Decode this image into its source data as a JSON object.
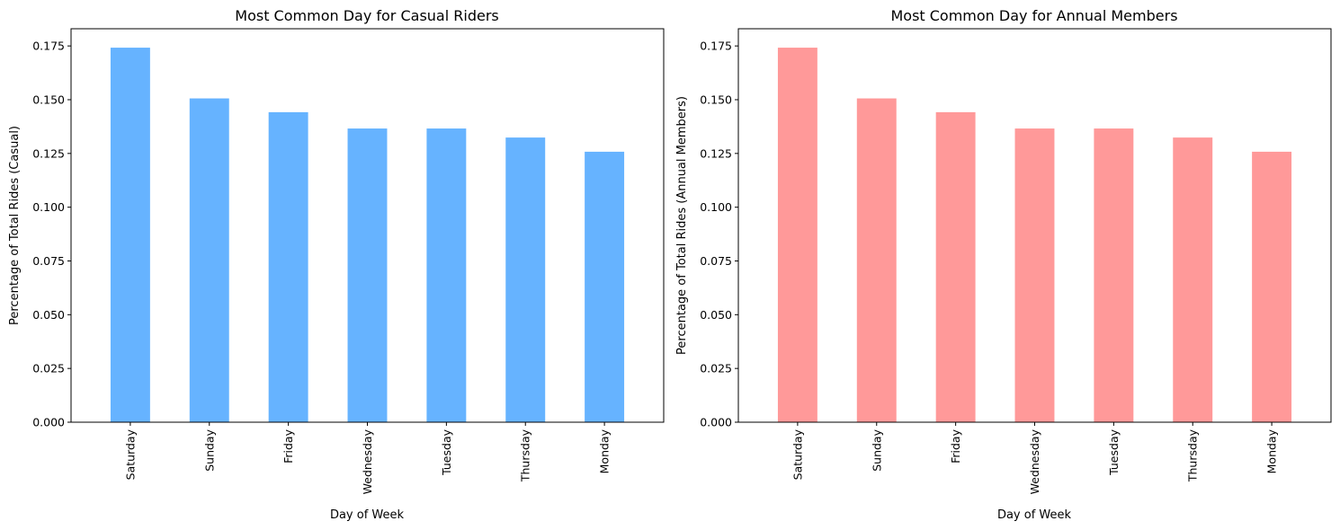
{
  "chart_data": [
    {
      "type": "bar",
      "title": "Most Common Day for Casual Riders",
      "xlabel": "Day of Week",
      "ylabel": "Percentage of Total Rides (Casual)",
      "categories": [
        "Saturday",
        "Sunday",
        "Friday",
        "Wednesday",
        "Tuesday",
        "Thursday",
        "Monday"
      ],
      "values": [
        0.1742,
        0.1506,
        0.1442,
        0.1366,
        0.1366,
        0.1324,
        0.1258
      ],
      "ylim": [
        0,
        0.183
      ],
      "yticks": [
        0.0,
        0.025,
        0.05,
        0.075,
        0.1,
        0.125,
        0.15,
        0.175
      ],
      "ytick_labels": [
        "0.000",
        "0.025",
        "0.050",
        "0.075",
        "0.100",
        "0.125",
        "0.150",
        "0.175"
      ],
      "color": "#66b3ff",
      "grid": false,
      "legend": null
    },
    {
      "type": "bar",
      "title": "Most Common Day for Annual Members",
      "xlabel": "Day of Week",
      "ylabel": "Percentage of Total Rides (Annual Members)",
      "categories": [
        "Saturday",
        "Sunday",
        "Friday",
        "Wednesday",
        "Tuesday",
        "Thursday",
        "Monday"
      ],
      "values": [
        0.1742,
        0.1506,
        0.1442,
        0.1366,
        0.1366,
        0.1324,
        0.1258
      ],
      "ylim": [
        0,
        0.183
      ],
      "yticks": [
        0.0,
        0.025,
        0.05,
        0.075,
        0.1,
        0.125,
        0.15,
        0.175
      ],
      "ytick_labels": [
        "0.000",
        "0.025",
        "0.050",
        "0.075",
        "0.100",
        "0.125",
        "0.150",
        "0.175"
      ],
      "color": "#ff9999",
      "grid": false,
      "legend": null
    }
  ]
}
